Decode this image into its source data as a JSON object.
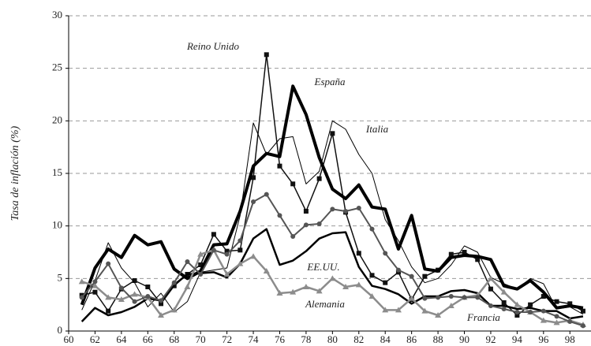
{
  "chart_data": {
    "type": "line",
    "y_label": "Tasa de inflación (%)",
    "x": [
      61,
      62,
      63,
      64,
      65,
      66,
      67,
      68,
      69,
      70,
      71,
      72,
      73,
      74,
      75,
      76,
      77,
      78,
      79,
      80,
      81,
      82,
      83,
      84,
      85,
      86,
      87,
      88,
      89,
      90,
      91,
      92,
      93,
      94,
      95,
      96,
      97,
      98,
      99
    ],
    "xlim": [
      60,
      99.6
    ],
    "xticks": [
      60,
      62,
      64,
      66,
      68,
      70,
      72,
      74,
      76,
      78,
      80,
      82,
      84,
      86,
      88,
      90,
      92,
      94,
      96,
      98
    ],
    "ylim": [
      0,
      30
    ],
    "yticks": [
      0,
      5,
      10,
      15,
      20,
      25,
      30
    ],
    "grid": true,
    "series": [
      {
        "name": "Reino Unido",
        "color": "#111111",
        "marker": "square",
        "values": [
          3.4,
          3.7,
          1.9,
          4,
          4.8,
          4.2,
          2.6,
          4.3,
          5.4,
          6.3,
          9.2,
          7.6,
          7.7,
          14.6,
          26.3,
          15.7,
          14,
          11.4,
          14.5,
          18.8,
          11.3,
          7.4,
          5.3,
          4.6,
          5.6,
          3,
          5.2,
          5.8,
          7.3,
          7.5,
          6.8,
          4,
          2.7,
          1.5,
          2.5,
          3.3,
          2.8,
          2.6,
          1.9
        ]
      },
      {
        "name": "España",
        "color": "#000000",
        "marker": "none",
        "values": [
          2.5,
          6,
          7.8,
          7,
          9.1,
          8.2,
          8.5,
          5.9,
          5,
          5.7,
          8.2,
          8.3,
          11.4,
          15.7,
          16.9,
          16.6,
          23.3,
          20.6,
          16.5,
          13.5,
          12.6,
          13.9,
          11.8,
          11.6,
          7.8,
          11,
          5.9,
          5.7,
          7,
          7.2,
          7.1,
          6.8,
          4.3,
          4,
          4.8,
          3.7,
          2.2,
          2.4,
          2.2
        ]
      },
      {
        "name": "Italia",
        "color": "#000000",
        "marker": "none",
        "values": [
          2,
          4.8,
          8.4,
          6,
          4.6,
          2.3,
          3.6,
          1.8,
          2.8,
          5.6,
          5.8,
          6,
          11,
          19.8,
          16.8,
          18.3,
          18.5,
          14,
          15.2,
          20,
          19.2,
          16.8,
          15,
          10.6,
          8.6,
          6.1,
          4.6,
          5,
          6.3,
          8.1,
          7.5,
          5.1,
          4.5,
          4,
          5,
          4.5,
          2.1,
          2.3,
          1.6
        ]
      },
      {
        "name": "EE.UU.",
        "color": "#000000",
        "marker": "none",
        "values": [
          0.9,
          2.2,
          1.5,
          1.8,
          2.3,
          3.1,
          2.9,
          4.4,
          5.4,
          5.5,
          5.6,
          5.1,
          6.4,
          8.8,
          9.7,
          6.3,
          6.7,
          7.6,
          8.8,
          9.3,
          9.4,
          6.1,
          4.3,
          4,
          3.5,
          2.6,
          3.3,
          3.3,
          3.8,
          3.9,
          3.6,
          2.4,
          2.4,
          2.1,
          2.2,
          1.9,
          1.9,
          1.2,
          1.4
        ]
      },
      {
        "name": "Alemania",
        "color": "#8c8c8c",
        "marker": "triangle",
        "values": [
          4.7,
          4.3,
          3.2,
          3,
          3.5,
          3.2,
          1.5,
          2,
          4.2,
          7.3,
          7.7,
          5.4,
          6.4,
          7.1,
          5.7,
          3.6,
          3.7,
          4.2,
          3.8,
          5,
          4.2,
          4.4,
          3.3,
          2,
          2,
          3.1,
          1.9,
          1.5,
          2.4,
          3.2,
          3.4,
          5,
          3.7,
          2.5,
          1.8,
          1,
          0.8,
          1,
          0.6
        ]
      },
      {
        "name": "Francia",
        "color": "#555555",
        "marker": "circle",
        "values": [
          3.2,
          4.7,
          6.4,
          4.1,
          2.8,
          3.3,
          2.9,
          4.6,
          6.6,
          5.4,
          7.7,
          7.3,
          8.6,
          12.3,
          13,
          11,
          9,
          10.1,
          10.2,
          11.6,
          11.4,
          11.7,
          9.7,
          7.4,
          5.8,
          5.2,
          3.1,
          3.2,
          3.3,
          3.2,
          3.2,
          2.4,
          2.1,
          1.8,
          1.8,
          1.9,
          1.4,
          0.9,
          0.5
        ]
      }
    ]
  }
}
